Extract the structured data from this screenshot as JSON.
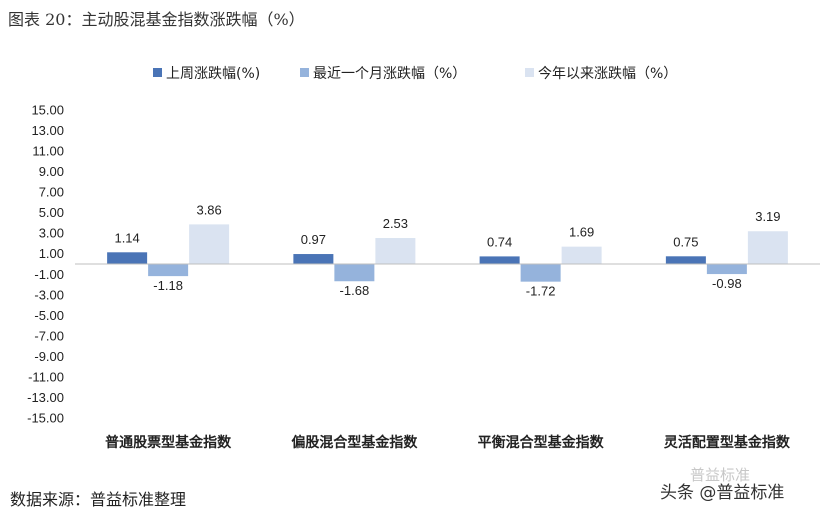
{
  "figure": {
    "title": "图表 20：主动股混基金指数涨跌幅（%）",
    "source": "数据来源：普益标准整理",
    "watermark": "头条 @普益标准",
    "watermark_ghost": "普益标准"
  },
  "colors": {
    "s1": "#4a74b6",
    "s2": "#95b3dc",
    "s3": "#dae3f1",
    "axis": "#bfbfbf",
    "text": "#222222"
  },
  "chart_data": {
    "type": "bar",
    "title": "",
    "xlabel": "",
    "ylabel": "",
    "ylim": [
      -15,
      15
    ],
    "yticks": [
      15,
      13,
      11,
      9,
      7,
      5,
      3,
      1,
      -1,
      -3,
      -5,
      -7,
      -9,
      -11,
      -13,
      -15
    ],
    "ytick_labels": [
      "15.00",
      "13.00",
      "11.00",
      "9.00",
      "7.00",
      "5.00",
      "3.00",
      "1.00",
      "-1.00",
      "-3.00",
      "-5.00",
      "-7.00",
      "-9.00",
      "-11.00",
      "-13.00",
      "-15.00"
    ],
    "grid": false,
    "legend": "top",
    "categories": [
      "普通股票型基金指数",
      "偏股混合型基金指数",
      "平衡混合型基金指数",
      "灵活配置型基金指数"
    ],
    "series": [
      {
        "name": "上周涨跌幅(%)",
        "values": [
          1.14,
          0.97,
          0.74,
          0.75
        ],
        "labels": [
          "1.14",
          "0.97",
          "0.74",
          "0.75"
        ]
      },
      {
        "name": "最近一个月涨跌幅（%）",
        "values": [
          -1.18,
          -1.68,
          -1.72,
          -0.98
        ],
        "labels": [
          "-1.18",
          "-1.68",
          "-1.72",
          "-0.98"
        ]
      },
      {
        "name": "今年以来涨跌幅（%）",
        "values": [
          3.86,
          2.53,
          1.69,
          3.19
        ],
        "labels": [
          "3.86",
          "2.53",
          "1.69",
          "3.19"
        ]
      }
    ]
  }
}
